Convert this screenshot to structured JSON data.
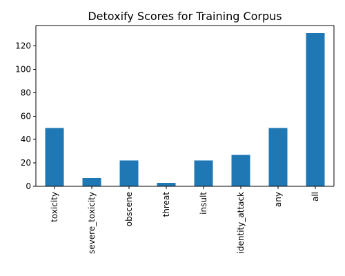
{
  "chart_data": {
    "type": "bar",
    "title": "Detoxify Scores for Training Corpus",
    "xlabel": "",
    "ylabel": "",
    "categories": [
      "toxicity",
      "severe_toxicity",
      "obscene",
      "threat",
      "insult",
      "identity_attack",
      "any",
      "all"
    ],
    "values": [
      50,
      7,
      22,
      3,
      22,
      27,
      50,
      131
    ],
    "ylim": [
      0,
      137.55
    ],
    "yticks": [
      0,
      20,
      40,
      60,
      80,
      100,
      120
    ],
    "grid": false,
    "legend": "none",
    "bar_color": "#1f77b4"
  }
}
